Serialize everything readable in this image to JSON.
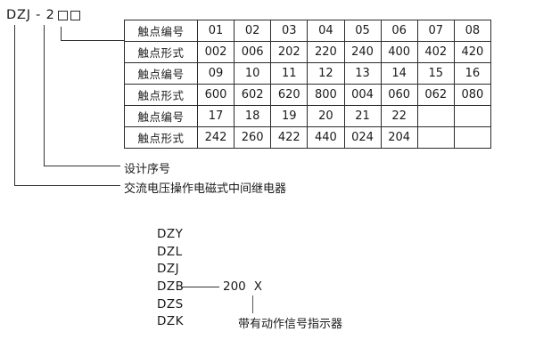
{
  "model": {
    "code": "DZJ - 2"
  },
  "callouts": {
    "design_series": "设计序号",
    "relay_description": "交流电压操作电磁式中间继电器"
  },
  "table": {
    "rows": [
      {
        "label": "触点编号",
        "values": [
          "01",
          "02",
          "03",
          "04",
          "05",
          "06",
          "07",
          "08"
        ]
      },
      {
        "label": "触点形式",
        "values": [
          "002",
          "006",
          "202",
          "220",
          "240",
          "400",
          "402",
          "420"
        ]
      },
      {
        "label": "触点编号",
        "values": [
          "09",
          "10",
          "11",
          "12",
          "13",
          "14",
          "15",
          "16"
        ]
      },
      {
        "label": "触点形式",
        "values": [
          "600",
          "602",
          "620",
          "800",
          "004",
          "060",
          "062",
          "080"
        ]
      },
      {
        "label": "触点编号",
        "values": [
          "17",
          "18",
          "19",
          "20",
          "21",
          "22",
          "",
          ""
        ]
      },
      {
        "label": "触点形式",
        "values": [
          "242",
          "260",
          "422",
          "440",
          "024",
          "204",
          "",
          ""
        ]
      }
    ]
  },
  "model_list": {
    "items": [
      "DZY",
      "DZL",
      "DZJ",
      "DZB",
      "DZS",
      "DZK"
    ],
    "dzb_code": "200",
    "dzb_x": "X",
    "indicator_note": "带有动作信号指示器"
  },
  "colors": {
    "line": "#333333",
    "border": "#2b2b2b",
    "text": "#1a1a1a",
    "background": "#ffffff"
  }
}
